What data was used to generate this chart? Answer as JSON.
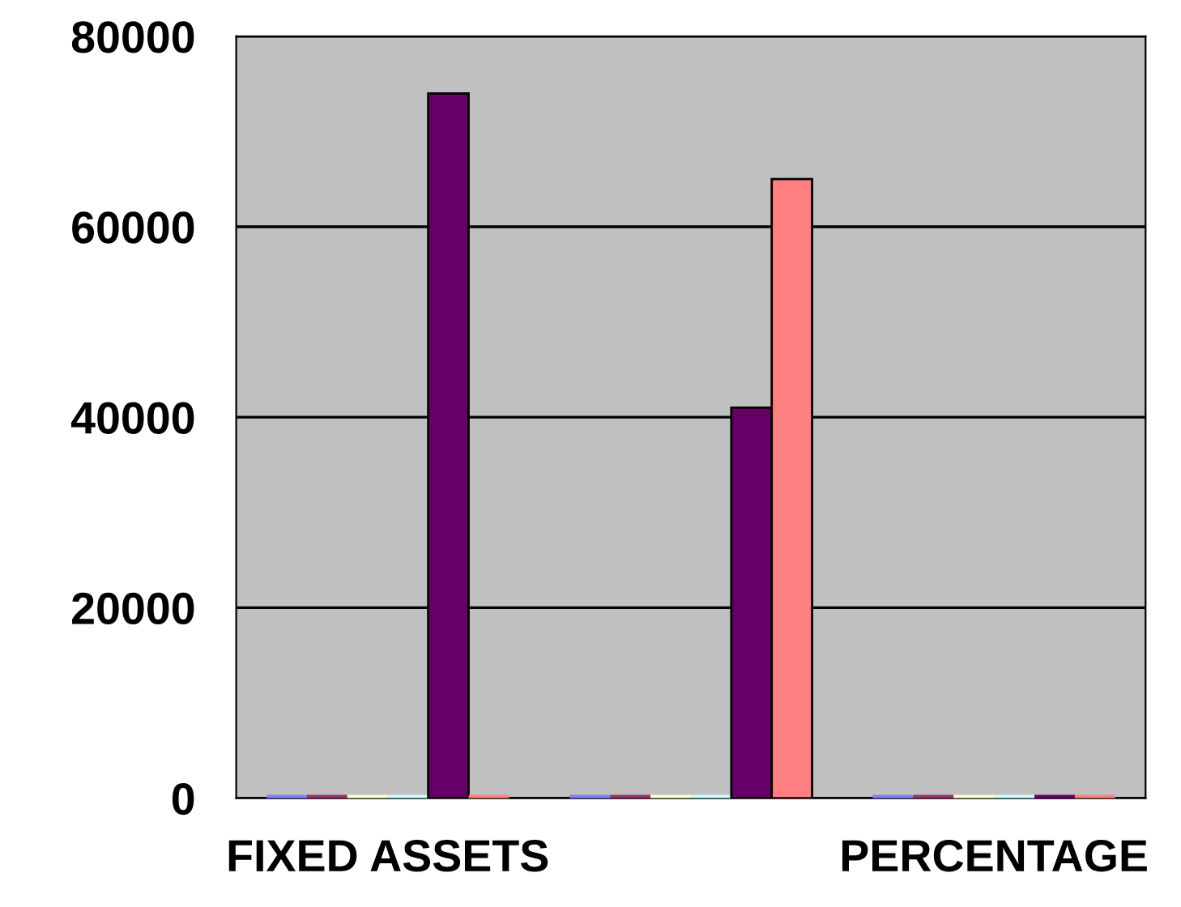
{
  "chart_data": {
    "type": "bar",
    "categories": [
      "FIXED ASSETS",
      null,
      "PERCENTAGE"
    ],
    "series": [
      {
        "color": "#8080ff",
        "values": [
          0,
          0,
          0
        ]
      },
      {
        "color": "#993366",
        "values": [
          0,
          0,
          0
        ]
      },
      {
        "color": "#ffffcc",
        "values": [
          0,
          0,
          0
        ]
      },
      {
        "color": "#ccffff",
        "values": [
          0,
          0,
          0
        ]
      },
      {
        "color": "#660066",
        "values": [
          74000,
          41000,
          0
        ]
      },
      {
        "color": "#ff8080",
        "values": [
          0,
          65000,
          0
        ]
      }
    ],
    "ylim": [
      0,
      80000
    ],
    "yticks": [
      0,
      20000,
      40000,
      60000,
      80000
    ],
    "grid": "y"
  }
}
